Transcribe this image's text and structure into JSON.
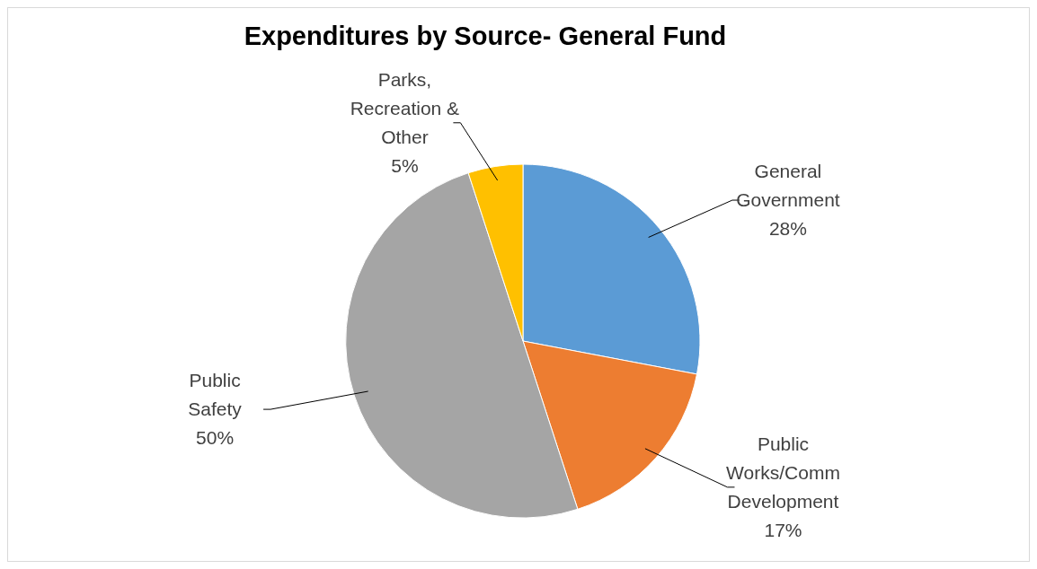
{
  "chart_data": {
    "type": "pie",
    "title": "Expenditures by Source- General Fund",
    "categories": [
      "General Government",
      "Public Works/Comm Development",
      "Public Safety",
      "Parks, Recreation & Other"
    ],
    "values": [
      28,
      17,
      50,
      5
    ],
    "colors": [
      "#5b9bd5",
      "#ed7d31",
      "#a5a5a5",
      "#ffc000"
    ],
    "value_labels": [
      "28%",
      "17%",
      "50%",
      "5%"
    ]
  }
}
